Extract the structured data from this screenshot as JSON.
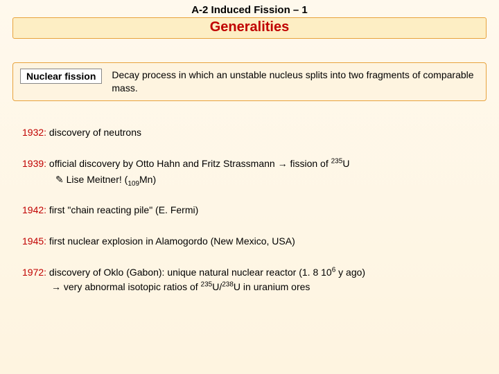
{
  "header": {
    "top": "A-2 Induced Fission – 1",
    "subtitle": "Generalities"
  },
  "definition": {
    "label": "Nuclear fission",
    "text": "Decay process in which an unstable nucleus splits into two fragments of comparable mass."
  },
  "timeline": {
    "y1932": {
      "year": "1932:",
      "text": " discovery of neutrons"
    },
    "y1939": {
      "year": "1939:",
      "text_a": " official discovery by Otto Hahn and Fritz Strassmann ",
      "arrow": "→",
      "text_b": " fission of ",
      "sup": "235",
      "u": "U",
      "note_sym": "✎",
      "note_a": " Lise Meitner!  (",
      "note_sub": "109",
      "note_mn": "Mn)"
    },
    "y1942": {
      "year": "1942:",
      "text": " first \"chain reacting pile\" (E. Fermi)"
    },
    "y1945": {
      "year": "1945:",
      "text": " first nuclear explosion in Alamogordo (New Mexico, USA)"
    },
    "y1972": {
      "year": "1972:",
      "text_a": " discovery of Oklo (Gabon): unique natural nuclear reactor (1. 8 10",
      "sup6": "6",
      "text_b": " y ago)",
      "arrow": "→",
      "cont_a": " very abnormal isotopic ratios of ",
      "s235": "235",
      "ua": "U/",
      "s238": "238",
      "ub": "U in uranium ores"
    }
  },
  "colors": {
    "accent": "#c00000",
    "box_border": "#e8a33d",
    "box_bg": "#fdeec4",
    "page_bg_top": "#fff9ed",
    "page_bg_bottom": "#fef4e0"
  }
}
